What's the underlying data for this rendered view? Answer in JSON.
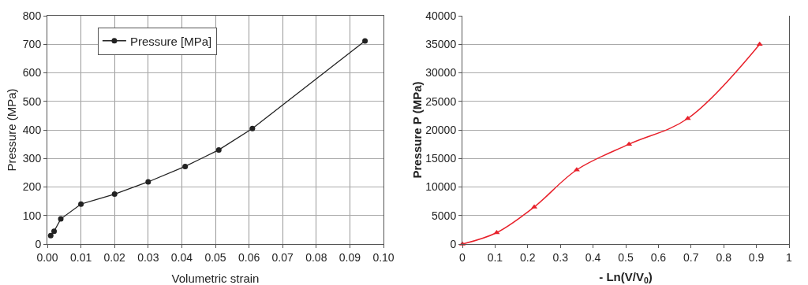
{
  "chart_data": [
    {
      "type": "line",
      "xlabel": "Volumetric strain",
      "ylabel": "Pressure (MPa)",
      "x": [
        0.001,
        0.002,
        0.004,
        0.01,
        0.02,
        0.03,
        0.041,
        0.051,
        0.061,
        0.0945
      ],
      "series": [
        {
          "name": "Pressure [MPa]",
          "color": "#222222",
          "values": [
            30,
            45,
            88,
            140,
            175,
            218,
            272,
            330,
            405,
            712
          ]
        }
      ],
      "xlim": [
        0,
        0.1
      ],
      "xticks": [
        {
          "value": 0,
          "label": "0.00"
        },
        0.01,
        0.02,
        0.03,
        0.04,
        0.05,
        0.06,
        0.07,
        0.08,
        0.09,
        {
          "value": 0.1,
          "label": "0.10"
        }
      ],
      "ylim": [
        0,
        800
      ],
      "yticks": [
        0,
        100,
        200,
        300,
        400,
        500,
        600,
        700,
        800
      ],
      "grid": true,
      "legend": "top left",
      "marker": "circle",
      "line_style": "solid"
    },
    {
      "type": "line",
      "xlabel": "- Ln(V/V$_{0}$)",
      "ylabel": "Pressure P (MPa)",
      "x": [
        0,
        0.105,
        0.22,
        0.35,
        0.51,
        0.69,
        0.91
      ],
      "series": [
        {
          "color": "#e8202a",
          "values": [
            0,
            2000,
            6500,
            13000,
            17500,
            22000,
            35000
          ]
        }
      ],
      "xlim": [
        0,
        1
      ],
      "xticks": [
        0,
        0.1,
        0.2,
        0.3,
        0.4,
        0.5,
        0.6,
        0.7,
        0.8,
        0.9,
        1
      ],
      "ylim": [
        0,
        40000
      ],
      "yticks": [
        0,
        5000,
        10000,
        15000,
        20000,
        25000,
        30000,
        35000,
        40000
      ],
      "grid": "y",
      "legend": false,
      "marker": "triangle",
      "line_style": "solid"
    }
  ]
}
